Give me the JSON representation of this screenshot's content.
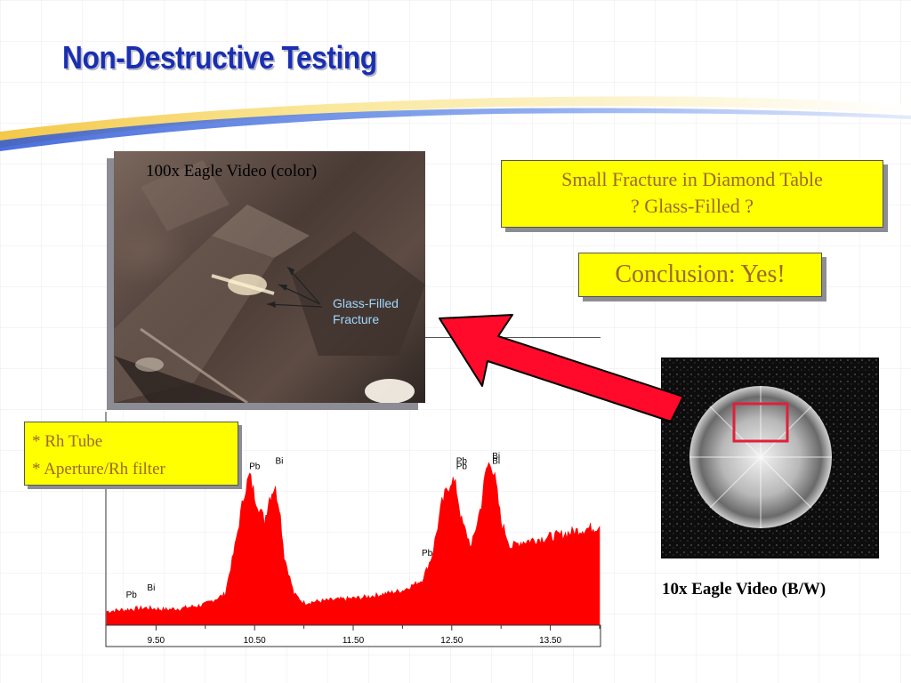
{
  "slide": {
    "title": "Non-Destructive Testing"
  },
  "color_video": {
    "caption": "100x Eagle Video (color)",
    "label_line1": "Glass-Filled",
    "label_line2": "Fracture"
  },
  "fracture_callout": {
    "line1": "Small Fracture in Diamond Table",
    "line2": "? Glass-Filled ?"
  },
  "conclusion_callout": {
    "text": "Conclusion:  Yes!"
  },
  "tube_callout": {
    "line1": "* Rh Tube",
    "line2": "* Aperture/Rh filter"
  },
  "bw_video": {
    "caption": "10x Eagle Video (B/W)"
  },
  "colors": {
    "title": "#1a2fb0",
    "callout_fill": "#ffff00",
    "callout_text": "#9a6a2c",
    "spectrum": "#ff0000",
    "arrow": "#ff0a2a",
    "highlight_box": "#e0203a"
  },
  "chart_data": {
    "type": "area",
    "title": "",
    "xlabel": "",
    "ylabel": "",
    "xlim": [
      9.0,
      14.0
    ],
    "x_ticks": [
      "9.50",
      "10.50",
      "11.50",
      "12.50",
      "13.50"
    ],
    "x_tick_values": [
      9.5,
      10.5,
      11.5,
      12.5,
      13.5
    ],
    "ylim": [
      0,
      100
    ],
    "grid": false,
    "series": [
      {
        "x": [
          9.0,
          9.2,
          9.4,
          9.6,
          9.8,
          10.0,
          10.2,
          10.3,
          10.4,
          10.45,
          10.5,
          10.6,
          10.65,
          10.7,
          10.75,
          10.8,
          10.9,
          11.0,
          11.2,
          11.4,
          11.6,
          11.8,
          12.0,
          12.2,
          12.3,
          12.4,
          12.5,
          12.55,
          12.6,
          12.7,
          12.8,
          12.85,
          12.9,
          12.95,
          13.0,
          13.1,
          13.2,
          13.4,
          13.6,
          13.8,
          14.0
        ],
        "y": [
          8,
          9,
          10,
          9,
          10,
          12,
          18,
          45,
          78,
          86,
          75,
          60,
          74,
          80,
          70,
          40,
          18,
          13,
          14,
          15,
          16,
          18,
          20,
          26,
          40,
          70,
          85,
          78,
          60,
          45,
          70,
          90,
          95,
          80,
          60,
          45,
          48,
          50,
          52,
          55,
          57
        ]
      }
    ],
    "annotations": [
      {
        "text": "Pb",
        "x": 9.25,
        "y": 16
      },
      {
        "text": "Bi",
        "x": 9.45,
        "y": 20
      },
      {
        "text": "Pb",
        "x": 10.5,
        "y": 90
      },
      {
        "text": "Bi",
        "x": 10.75,
        "y": 93
      },
      {
        "text": "Pb",
        "x": 12.25,
        "y": 40
      },
      {
        "text": "Pb",
        "x": 12.6,
        "y": 93
      },
      {
        "text": "Pb",
        "x": 12.6,
        "y": 90
      },
      {
        "text": "Bi",
        "x": 12.95,
        "y": 96
      },
      {
        "text": "Bi",
        "x": 12.95,
        "y": 93
      }
    ]
  }
}
